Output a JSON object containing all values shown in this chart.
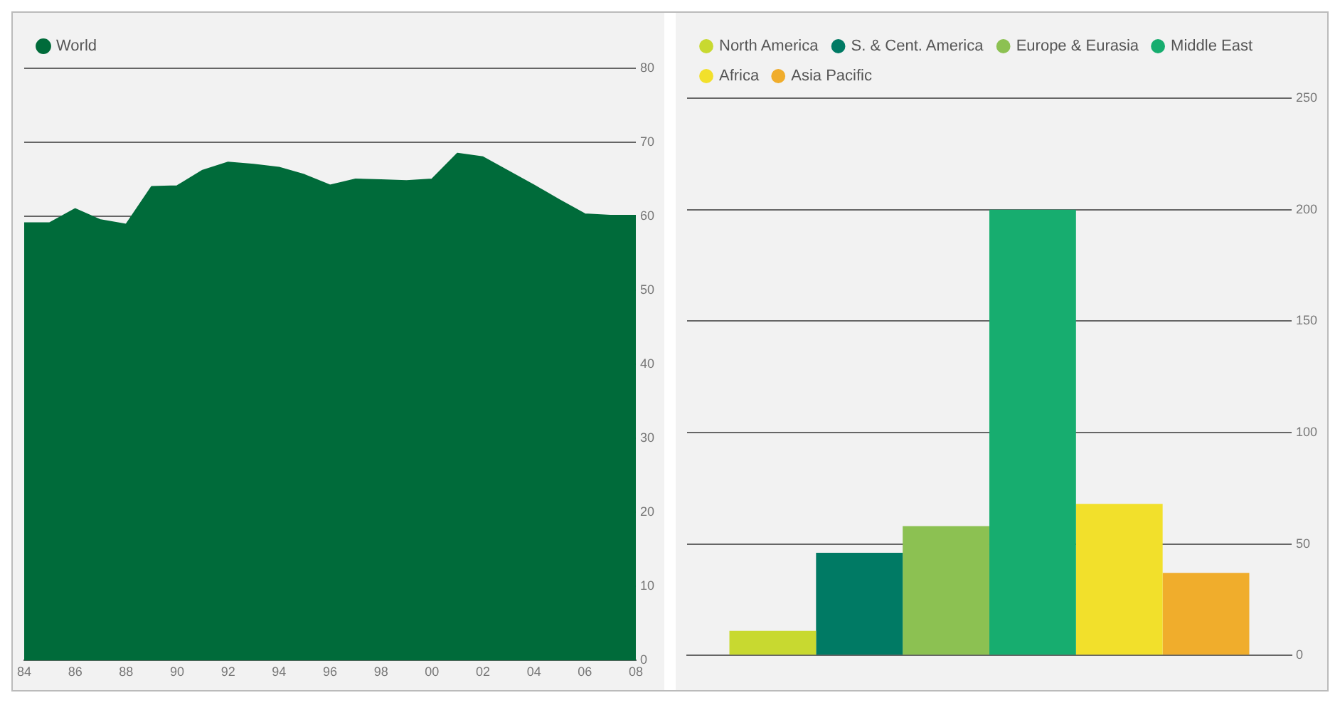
{
  "chart_data": [
    {
      "type": "area",
      "x": [
        1984,
        1985,
        1986,
        1987,
        1988,
        1989,
        1990,
        1991,
        1992,
        1993,
        1994,
        1995,
        1996,
        1997,
        1998,
        1999,
        2000,
        2001,
        2002,
        2003,
        2004,
        2005,
        2006,
        2007,
        2008
      ],
      "series": [
        {
          "name": "World",
          "color": "#006b3a",
          "values": [
            59.1,
            59.1,
            61.0,
            59.5,
            58.9,
            64.0,
            64.1,
            66.2,
            67.3,
            67.0,
            66.6,
            65.6,
            64.2,
            65.0,
            64.9,
            64.8,
            65.0,
            68.5,
            68.0,
            66.1,
            64.2,
            62.2,
            60.3,
            60.1,
            60.1
          ]
        }
      ],
      "xlim": [
        1984,
        2008
      ],
      "xticks": [
        {
          "value": 1984,
          "label": "84"
        },
        {
          "value": 1986,
          "label": "86"
        },
        {
          "value": 1988,
          "label": "88"
        },
        {
          "value": 1990,
          "label": "90"
        },
        {
          "value": 1992,
          "label": "92"
        },
        {
          "value": 1994,
          "label": "94"
        },
        {
          "value": 1996,
          "label": "96"
        },
        {
          "value": 1998,
          "label": "98"
        },
        {
          "value": 2000,
          "label": "00"
        },
        {
          "value": 2002,
          "label": "02"
        },
        {
          "value": 2004,
          "label": "04"
        },
        {
          "value": 2006,
          "label": "06"
        },
        {
          "value": 2008,
          "label": "08"
        }
      ],
      "ylim": [
        0,
        80
      ],
      "yticks": [
        0,
        10,
        20,
        30,
        40,
        50,
        60,
        70,
        80
      ],
      "grid": "y",
      "legend": "top left"
    },
    {
      "type": "bar",
      "categories": [
        null
      ],
      "series": [
        {
          "name": "North America",
          "color": "#c8d930",
          "values": [
            11
          ]
        },
        {
          "name": "S. & Cent. America",
          "color": "#007a64",
          "values": [
            46
          ]
        },
        {
          "name": "Europe & Eurasia",
          "color": "#8cc152",
          "values": [
            58
          ]
        },
        {
          "name": "Middle East",
          "color": "#17ad6f",
          "values": [
            200
          ]
        },
        {
          "name": "Africa",
          "color": "#f2e02b",
          "values": [
            68
          ]
        },
        {
          "name": "Asia Pacific",
          "color": "#f0ad2c",
          "values": [
            37
          ]
        }
      ],
      "ylim": [
        0,
        250
      ],
      "yticks": [
        0,
        50,
        100,
        150,
        200,
        250
      ],
      "grid": "y",
      "legend": "top left"
    }
  ]
}
